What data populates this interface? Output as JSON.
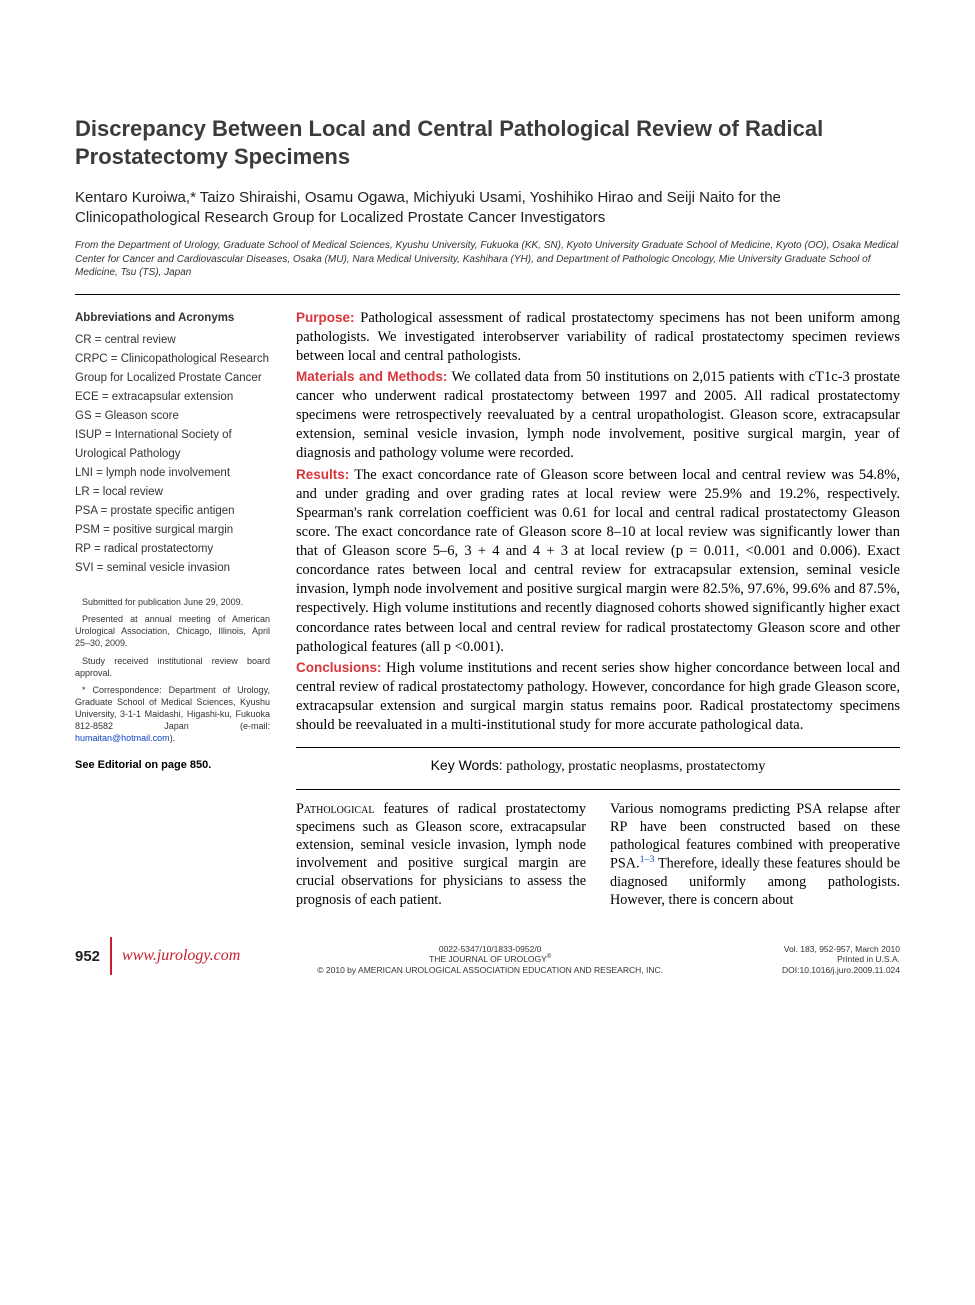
{
  "title": "Discrepancy Between Local and Central Pathological Review of Radical Prostatectomy Specimens",
  "authors": "Kentaro Kuroiwa,* Taizo Shiraishi, Osamu Ogawa, Michiyuki Usami, Yoshihiko Hirao and Seiji Naito for the Clinicopathological Research Group for Localized Prostate Cancer Investigators",
  "affiliation": "From the Department of Urology, Graduate School of Medical Sciences, Kyushu University, Fukuoka (KK, SN), Kyoto University Graduate School of Medicine, Kyoto (OO), Osaka Medical Center for Cancer and Cardiovascular Diseases, Osaka (MU), Nara Medical University, Kashihara (YH), and Department of Pathologic Oncology, Mie University Graduate School of Medicine, Tsu (TS), Japan",
  "abbr": {
    "heading": "Abbreviations and Acronyms",
    "items": [
      "CR = central review",
      "CRPC = Clinicopathological Research Group for Localized Prostate Cancer",
      "ECE = extracapsular extension",
      "GS = Gleason score",
      "ISUP = International Society of Urological Pathology",
      "LNI = lymph node involvement",
      "LR = local review",
      "PSA = prostate specific antigen",
      "PSM = positive surgical margin",
      "RP = radical prostatectomy",
      "SVI = seminal vesicle invasion"
    ]
  },
  "notes": {
    "submitted": "Submitted for publication June 29, 2009.",
    "presented": "Presented at annual meeting of American Urological Association, Chicago, Illinois, April 25–30, 2009.",
    "irb": "Study received institutional review board approval.",
    "corr": "* Correspondence: Department of Urology, Graduate School of Medical Sciences, Kyushu University, 3-1-1 Maidashi, Higashi-ku, Fukuoka 812-8582 Japan (e-mail: ",
    "email": "humaitan@hotmail.com",
    "corr_end": ").",
    "editorial": "See Editorial on page 850."
  },
  "abstract": {
    "purpose_label": "Purpose:",
    "purpose": " Pathological assessment of radical prostatectomy specimens has not been uniform among pathologists. We investigated interobserver variability of radical prostatectomy specimen reviews between local and central pathologists.",
    "mm_label": "Materials and Methods:",
    "mm": " We collated data from 50 institutions on 2,015 patients with cT1c-3 prostate cancer who underwent radical prostatectomy between 1997 and 2005. All radical prostatectomy specimens were retrospectively reevaluated by a central uropathologist. Gleason score, extracapsular extension, seminal vesicle invasion, lymph node involvement, positive surgical margin, year of diagnosis and pathology volume were recorded.",
    "results_label": "Results:",
    "results": " The exact concordance rate of Gleason score between local and central review was 54.8%, and under grading and over grading rates at local review were 25.9% and 19.2%, respectively. Spearman's rank correlation coefficient was 0.61 for local and central radical prostatectomy Gleason score. The exact concordance rate of Gleason score 8–10 at local review was significantly lower than that of Gleason score 5–6, 3 + 4 and 4 + 3 at local review (p = 0.011, <0.001 and 0.006). Exact concordance rates between local and central review for extracapsular extension, seminal vesicle invasion, lymph node involvement and positive surgical margin were 82.5%, 97.6%, 99.6% and 87.5%, respectively. High volume institutions and recently diagnosed cohorts showed significantly higher exact concordance rates between local and central review for radical prostatectomy Gleason score and other pathological features (all p <0.001).",
    "concl_label": "Conclusions:",
    "concl": " High volume institutions and recent series show higher concordance between local and central review of radical prostatectomy pathology. However, concordance for high grade Gleason score, extracapsular extension and surgical margin status remains poor. Radical prostatectomy specimens should be reevaluated in a multi-institutional study for more accurate pathological data."
  },
  "keywords": {
    "label": "Key Words:",
    "text": " pathology, prostatic neoplasms, prostatectomy"
  },
  "body": {
    "col1_lead": "Pathological",
    "col1": " features of radical prostatectomy specimens such as Gleason score, extracapsular extension, seminal vesicle invasion, lymph node involvement and positive surgical margin are crucial observations for physicians to assess the prognosis of each patient.",
    "col2_a": "Various nomograms predicting PSA relapse after RP have been constructed based on these pathological features combined with preoperative PSA.",
    "col2_ref": "1–3",
    "col2_b": " Therefore, ideally these features should be diagnosed uniformly among pathologists. However, there is concern about"
  },
  "footer": {
    "page": "952",
    "url": "www.jurology.com",
    "issn": "0022-5347/10/1833-0952/0",
    "journal": "THE JOURNAL OF UROLOGY",
    "copyright": "© 2010 by AMERICAN UROLOGICAL ASSOCIATION EDUCATION AND RESEARCH, INC.",
    "vol": "Vol. 183, 952-957, March 2010",
    "printed": "Printed in U.S.A.",
    "doi": "DOI:10.1016/j.juro.2009.11.024"
  }
}
